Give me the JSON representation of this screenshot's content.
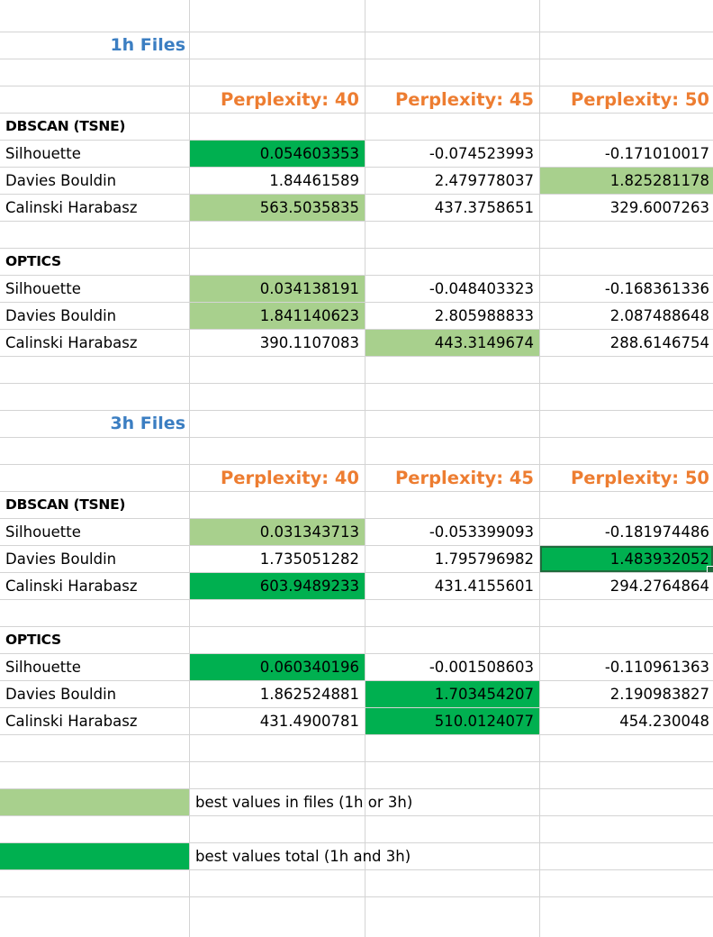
{
  "colors": {
    "light_green": "#a8d08d",
    "dark_green": "#00b050",
    "section_title": "#3b7ec2",
    "header_orange": "#ed7d31"
  },
  "sections": [
    {
      "title": "1h Files",
      "headers": [
        "Perplexity: 40",
        "Perplexity: 45",
        "Perplexity: 50"
      ],
      "algorithms": [
        {
          "name": "DBSCAN (TSNE)",
          "metrics": [
            {
              "label": "Silhouette",
              "values": [
                "0.054603353",
                "-0.074523993",
                "-0.171010017"
              ],
              "highlight": [
                "dark",
                "",
                ""
              ]
            },
            {
              "label": "Davies Bouldin",
              "values": [
                "1.84461589",
                "2.479778037",
                "1.825281178"
              ],
              "highlight": [
                "",
                "",
                "light"
              ]
            },
            {
              "label": "Calinski Harabasz",
              "values": [
                "563.5035835",
                "437.3758651",
                "329.6007263"
              ],
              "highlight": [
                "light",
                "",
                ""
              ]
            }
          ]
        },
        {
          "name": "OPTICS",
          "metrics": [
            {
              "label": "Silhouette",
              "values": [
                "0.034138191",
                "-0.048403323",
                "-0.168361336"
              ],
              "highlight": [
                "light",
                "",
                ""
              ]
            },
            {
              "label": "Davies Bouldin",
              "values": [
                "1.841140623",
                "2.805988833",
                "2.087488648"
              ],
              "highlight": [
                "light",
                "",
                ""
              ]
            },
            {
              "label": "Calinski Harabasz",
              "values": [
                "390.1107083",
                "443.3149674",
                "288.6146754"
              ],
              "highlight": [
                "",
                "light",
                ""
              ]
            }
          ]
        }
      ]
    },
    {
      "title": "3h Files",
      "headers": [
        "Perplexity: 40",
        "Perplexity: 45",
        "Perplexity: 50"
      ],
      "algorithms": [
        {
          "name": "DBSCAN (TSNE)",
          "metrics": [
            {
              "label": "Silhouette",
              "values": [
                "0.031343713",
                "-0.053399093",
                "-0.181974486"
              ],
              "highlight": [
                "light",
                "",
                ""
              ]
            },
            {
              "label": "Davies Bouldin",
              "values": [
                "1.735051282",
                "1.795796982",
                "1.483932052"
              ],
              "highlight": [
                "",
                "",
                "dark"
              ]
            },
            {
              "label": "Calinski Harabasz",
              "values": [
                "603.9489233",
                "431.4155601",
                "294.2764864"
              ],
              "highlight": [
                "dark",
                "",
                ""
              ]
            }
          ]
        },
        {
          "name": "OPTICS",
          "metrics": [
            {
              "label": "Silhouette",
              "values": [
                "0.060340196",
                "-0.001508603",
                "-0.110961363"
              ],
              "highlight": [
                "dark",
                "",
                ""
              ]
            },
            {
              "label": "Davies Bouldin",
              "values": [
                "1.862524881",
                "1.703454207",
                "2.190983827"
              ],
              "highlight": [
                "",
                "dark",
                ""
              ]
            },
            {
              "label": "Calinski Harabasz",
              "values": [
                "431.4900781",
                "510.0124077",
                "454.230048"
              ],
              "highlight": [
                "",
                "dark",
                ""
              ]
            }
          ]
        }
      ]
    }
  ],
  "legend": [
    {
      "swatch": "light",
      "text": "best values in files (1h or 3h)"
    },
    {
      "swatch": "dark",
      "text": "best values total (1h and 3h)"
    }
  ]
}
